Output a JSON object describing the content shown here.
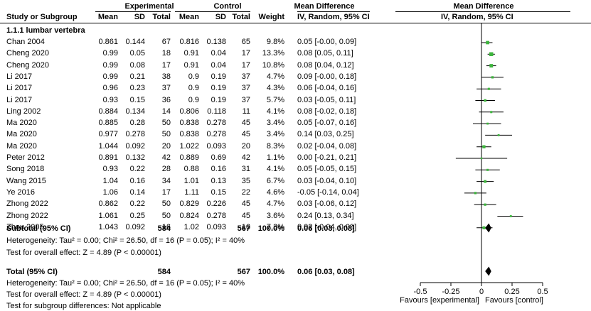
{
  "header": {
    "experimental": "Experimental",
    "control": "Control",
    "md_group": "Mean Difference",
    "plot_group": "Mean Difference",
    "study": "Study or Subgroup",
    "exp_mean": "Mean",
    "exp_sd": "SD",
    "exp_total": "Total",
    "ctl_mean": "Mean",
    "ctl_sd": "SD",
    "ctl_total": "Total",
    "weight": "Weight",
    "md_method": "IV, Random, 95% CI",
    "plot_method": "IV, Random, 95% CI"
  },
  "subgroup_title": "1.1.1 lumbar vertebra",
  "studies": [
    {
      "name": "Chan 2004",
      "em": "0.861",
      "esd": "0.144",
      "et": "67",
      "cm": "0.816",
      "csd": "0.138",
      "ct": "65",
      "w": "9.8%",
      "ci": "0.05 [-0.00, 0.09]"
    },
    {
      "name": "Cheng 2020",
      "em": "0.99",
      "esd": "0.05",
      "et": "18",
      "cm": "0.91",
      "csd": "0.04",
      "ct": "17",
      "w": "13.3%",
      "ci": "0.08 [0.05, 0.11]"
    },
    {
      "name": "Cheng 2020",
      "em": "0.99",
      "esd": "0.08",
      "et": "17",
      "cm": "0.91",
      "csd": "0.04",
      "ct": "17",
      "w": "10.8%",
      "ci": "0.08 [0.04, 0.12]"
    },
    {
      "name": "Li 2017",
      "em": "0.99",
      "esd": "0.21",
      "et": "38",
      "cm": "0.9",
      "csd": "0.19",
      "ct": "37",
      "w": "4.7%",
      "ci": "0.09 [-0.00, 0.18]"
    },
    {
      "name": "Li 2017",
      "em": "0.96",
      "esd": "0.23",
      "et": "37",
      "cm": "0.9",
      "csd": "0.19",
      "ct": "37",
      "w": "4.3%",
      "ci": "0.06 [-0.04, 0.16]"
    },
    {
      "name": "Li 2017",
      "em": "0.93",
      "esd": "0.15",
      "et": "36",
      "cm": "0.9",
      "csd": "0.19",
      "ct": "37",
      "w": "5.7%",
      "ci": "0.03 [-0.05, 0.11]"
    },
    {
      "name": "Ling 2002",
      "em": "0.884",
      "esd": "0.134",
      "et": "14",
      "cm": "0.806",
      "csd": "0.118",
      "ct": "11",
      "w": "4.1%",
      "ci": "0.08 [-0.02, 0.18]"
    },
    {
      "name": "Ma 2020",
      "em": "0.885",
      "esd": "0.28",
      "et": "50",
      "cm": "0.838",
      "csd": "0.278",
      "ct": "45",
      "w": "3.4%",
      "ci": "0.05 [-0.07, 0.16]"
    },
    {
      "name": "Ma 2020",
      "em": "0.977",
      "esd": "0.278",
      "et": "50",
      "cm": "0.838",
      "csd": "0.278",
      "ct": "45",
      "w": "3.4%",
      "ci": "0.14 [0.03, 0.25]"
    },
    {
      "name": "Ma 2020",
      "em": "1.044",
      "esd": "0.092",
      "et": "20",
      "cm": "1.022",
      "csd": "0.093",
      "ct": "20",
      "w": "8.3%",
      "ci": "0.02 [-0.04, 0.08]"
    },
    {
      "name": "Peter 2012",
      "em": "0.891",
      "esd": "0.132",
      "et": "42",
      "cm": "0.889",
      "csd": "0.69",
      "ct": "42",
      "w": "1.1%",
      "ci": "0.00 [-0.21, 0.21]"
    },
    {
      "name": "Song 2018",
      "em": "0.93",
      "esd": "0.22",
      "et": "28",
      "cm": "0.88",
      "csd": "0.16",
      "ct": "31",
      "w": "4.1%",
      "ci": "0.05 [-0.05, 0.15]"
    },
    {
      "name": "Wang 2015",
      "em": "1.04",
      "esd": "0.16",
      "et": "34",
      "cm": "1.01",
      "csd": "0.13",
      "ct": "35",
      "w": "6.7%",
      "ci": "0.03 [-0.04, 0.10]"
    },
    {
      "name": "Ye 2016",
      "em": "1.06",
      "esd": "0.14",
      "et": "17",
      "cm": "1.11",
      "csd": "0.15",
      "ct": "22",
      "w": "4.6%",
      "ci": "-0.05 [-0.14, 0.04]"
    },
    {
      "name": "Zhong 2022",
      "em": "0.862",
      "esd": "0.22",
      "et": "50",
      "cm": "0.829",
      "csd": "0.226",
      "ct": "45",
      "w": "4.7%",
      "ci": "0.03 [-0.06, 0.12]"
    },
    {
      "name": "Zhong 2022",
      "em": "1.061",
      "esd": "0.25",
      "et": "50",
      "cm": "0.824",
      "csd": "0.278",
      "ct": "45",
      "w": "3.6%",
      "ci": "0.24 [0.13, 0.34]"
    },
    {
      "name": "Zhou 2005",
      "em": "1.043",
      "esd": "0.092",
      "et": "16",
      "cm": "1.02",
      "csd": "0.093",
      "ct": "16",
      "w": "7.3%",
      "ci": "0.02 [-0.04, 0.09]"
    }
  ],
  "subtotal": {
    "label": "Subtotal (95% CI)",
    "et": "584",
    "ct": "567",
    "w": "100.0%",
    "ci": "0.06 [0.03, 0.08]"
  },
  "subgroup_het": "Heterogeneity: Tau² = 0.00; Chi² = 26.50, df = 16 (P = 0.05); I² = 40%",
  "subgroup_effect": "Test for overall effect: Z = 4.89 (P < 0.00001)",
  "total": {
    "label": "Total (95% CI)",
    "et": "584",
    "ct": "567",
    "w": "100.0%",
    "ci": "0.06 [0.03, 0.08]"
  },
  "total_het": "Heterogeneity: Tau² = 0.00; Chi² = 26.50, df = 16 (P = 0.05); I² = 40%",
  "total_effect": "Test for overall effect: Z = 4.89 (P < 0.00001)",
  "subgroup_diff": "Test for subgroup differences: Not applicable",
  "axis": {
    "ticks": [
      "-0.5",
      "-0.25",
      "0",
      "0.25",
      "0.5"
    ],
    "favours_left": "Favours [experimental]",
    "favours_right": "Favours [control]"
  },
  "colors": {
    "point": "#3db53d",
    "line": "#000000"
  },
  "chart_data": {
    "type": "forest",
    "xlim": [
      -0.5,
      0.5
    ],
    "x_ticks": [
      -0.5,
      -0.25,
      0,
      0.25,
      0.5
    ],
    "studies": [
      {
        "md": 0.05,
        "lo": -0.0,
        "hi": 0.09,
        "weight": 9.8
      },
      {
        "md": 0.08,
        "lo": 0.05,
        "hi": 0.11,
        "weight": 13.3
      },
      {
        "md": 0.08,
        "lo": 0.04,
        "hi": 0.12,
        "weight": 10.8
      },
      {
        "md": 0.09,
        "lo": -0.0,
        "hi": 0.18,
        "weight": 4.7
      },
      {
        "md": 0.06,
        "lo": -0.04,
        "hi": 0.16,
        "weight": 4.3
      },
      {
        "md": 0.03,
        "lo": -0.05,
        "hi": 0.11,
        "weight": 5.7
      },
      {
        "md": 0.08,
        "lo": -0.02,
        "hi": 0.18,
        "weight": 4.1
      },
      {
        "md": 0.05,
        "lo": -0.07,
        "hi": 0.16,
        "weight": 3.4
      },
      {
        "md": 0.14,
        "lo": 0.03,
        "hi": 0.25,
        "weight": 3.4
      },
      {
        "md": 0.02,
        "lo": -0.04,
        "hi": 0.08,
        "weight": 8.3
      },
      {
        "md": 0.0,
        "lo": -0.21,
        "hi": 0.21,
        "weight": 1.1
      },
      {
        "md": 0.05,
        "lo": -0.05,
        "hi": 0.15,
        "weight": 4.1
      },
      {
        "md": 0.03,
        "lo": -0.04,
        "hi": 0.1,
        "weight": 6.7
      },
      {
        "md": -0.05,
        "lo": -0.14,
        "hi": 0.04,
        "weight": 4.6
      },
      {
        "md": 0.03,
        "lo": -0.06,
        "hi": 0.12,
        "weight": 4.7
      },
      {
        "md": 0.24,
        "lo": 0.13,
        "hi": 0.34,
        "weight": 3.6
      },
      {
        "md": 0.02,
        "lo": -0.04,
        "hi": 0.09,
        "weight": 7.3
      }
    ],
    "subtotal": {
      "md": 0.06,
      "lo": 0.03,
      "hi": 0.08
    },
    "total": {
      "md": 0.06,
      "lo": 0.03,
      "hi": 0.08
    }
  }
}
